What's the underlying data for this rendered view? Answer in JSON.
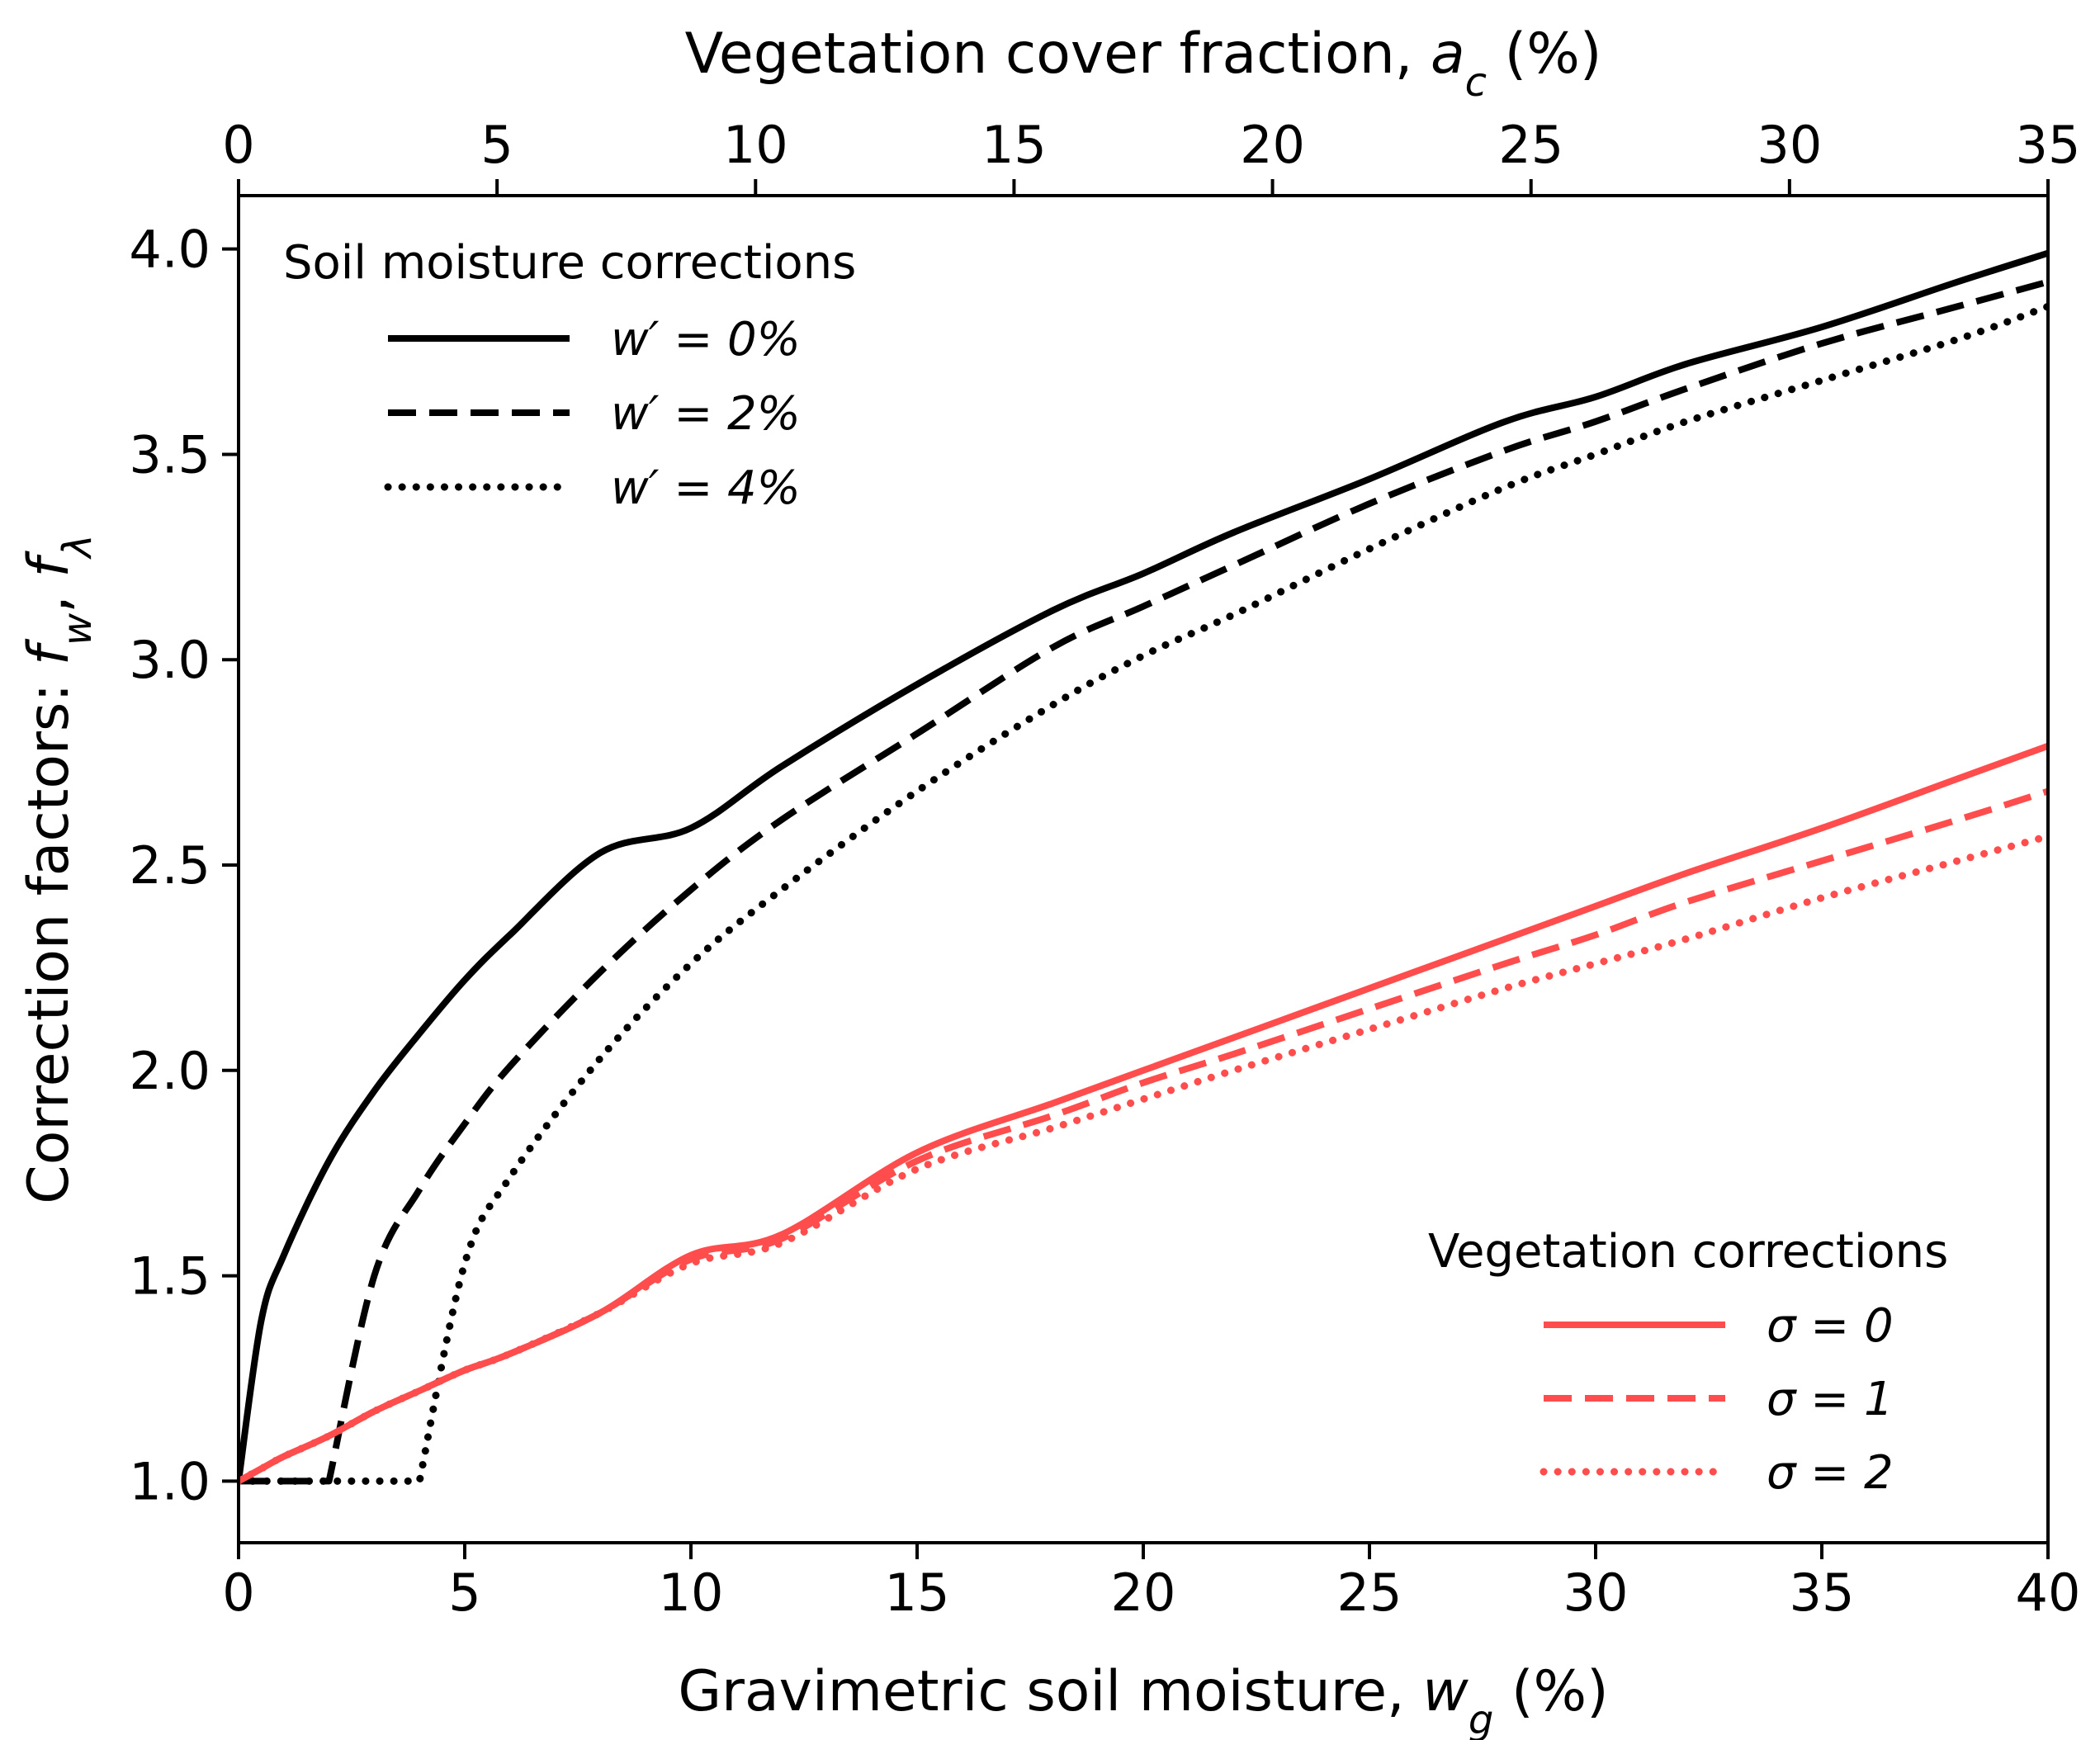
{
  "chart_data": {
    "type": "line",
    "xlabel": {
      "prefix": "Gravimetric soil moisture, ",
      "var": "w",
      "sub": "g",
      "suffix": " (%)"
    },
    "x2label": {
      "prefix": "Vegetation cover fraction, ",
      "var": "a",
      "sub": "c",
      "suffix": " (%)"
    },
    "ylabel": {
      "prefix": "Correction factors: ",
      "var1": "f",
      "sub1": "w",
      "sep": ", ",
      "var2": "f",
      "sub2": "λ"
    },
    "xlim": [
      0,
      40
    ],
    "x2lim": [
      0,
      35
    ],
    "ylim": [
      0.85,
      4.13
    ],
    "xticks": [
      0,
      5,
      10,
      15,
      20,
      25,
      30,
      35,
      40
    ],
    "x2ticks": [
      0,
      5,
      10,
      15,
      20,
      25,
      30,
      35
    ],
    "yticks": [
      1.0,
      1.5,
      2.0,
      2.5,
      3.0,
      3.5,
      4.0
    ],
    "ytick_labels": [
      "1.0",
      "1.5",
      "2.0",
      "2.5",
      "3.0",
      "3.5",
      "4.0"
    ],
    "colors": {
      "soil": "#000000",
      "vegetation": "#ff4d4d"
    },
    "legend_soil": {
      "title": "Soil moisture corrections",
      "position": "top-left",
      "entries": [
        "w′ = 0%",
        "w′ = 2%",
        "w′ = 4%"
      ]
    },
    "legend_vegetation": {
      "title": "Vegetation corrections",
      "position": "bottom-right",
      "entries": [
        "σ = 0",
        "σ = 1",
        "σ = 2"
      ]
    },
    "x": [
      0,
      0.5,
      1,
      2,
      3,
      4,
      5,
      6,
      8,
      10,
      12,
      15,
      18,
      20,
      22,
      25,
      28,
      30,
      32,
      35,
      38,
      40
    ],
    "series": [
      {
        "name": "w′ = 0%",
        "group": "soil",
        "style": "solid",
        "axis": "bottom",
        "values": [
          1.0,
          1.39,
          1.55,
          1.78,
          1.95,
          2.09,
          2.22,
          2.33,
          2.53,
          2.59,
          2.74,
          2.94,
          3.12,
          3.21,
          3.31,
          3.44,
          3.58,
          3.64,
          3.72,
          3.81,
          3.92,
          3.99
        ]
      },
      {
        "name": "w′ = 2%",
        "group": "soil",
        "style": "dashed",
        "axis": "bottom",
        "values": [
          1.0,
          1.0,
          1.0,
          1.0,
          1.5,
          1.71,
          1.87,
          2.01,
          2.24,
          2.44,
          2.61,
          2.82,
          3.03,
          3.13,
          3.23,
          3.38,
          3.51,
          3.58,
          3.66,
          3.77,
          3.86,
          3.92
        ]
      },
      {
        "name": "w′ = 4%",
        "group": "soil",
        "style": "dotted",
        "axis": "bottom",
        "values": [
          1.0,
          1.0,
          1.0,
          1.0,
          1.0,
          1.0,
          1.53,
          1.74,
          2.03,
          2.26,
          2.44,
          2.68,
          2.89,
          3.01,
          3.11,
          3.27,
          3.42,
          3.5,
          3.58,
          3.68,
          3.78,
          3.86
        ]
      },
      {
        "name": "σ = 0",
        "group": "vegetation",
        "style": "solid",
        "axis": "bottom",
        "values": [
          1.0,
          1.03,
          1.06,
          1.11,
          1.17,
          1.22,
          1.27,
          1.31,
          1.41,
          1.55,
          1.6,
          1.8,
          1.92,
          2.0,
          2.08,
          2.2,
          2.32,
          2.4,
          2.48,
          2.59,
          2.71,
          2.79
        ]
      },
      {
        "name": "σ = 1",
        "group": "vegetation",
        "style": "dashed",
        "axis": "bottom",
        "values": [
          1.0,
          1.03,
          1.06,
          1.11,
          1.17,
          1.22,
          1.27,
          1.31,
          1.41,
          1.54,
          1.59,
          1.78,
          1.89,
          1.97,
          2.04,
          2.15,
          2.26,
          2.33,
          2.41,
          2.51,
          2.61,
          2.68
        ]
      },
      {
        "name": "σ = 2",
        "group": "vegetation",
        "style": "dotted",
        "axis": "bottom",
        "values": [
          1.0,
          1.03,
          1.06,
          1.11,
          1.17,
          1.22,
          1.27,
          1.31,
          1.41,
          1.53,
          1.58,
          1.76,
          1.86,
          1.93,
          2.0,
          2.1,
          2.2,
          2.26,
          2.32,
          2.42,
          2.51,
          2.57
        ]
      }
    ]
  }
}
